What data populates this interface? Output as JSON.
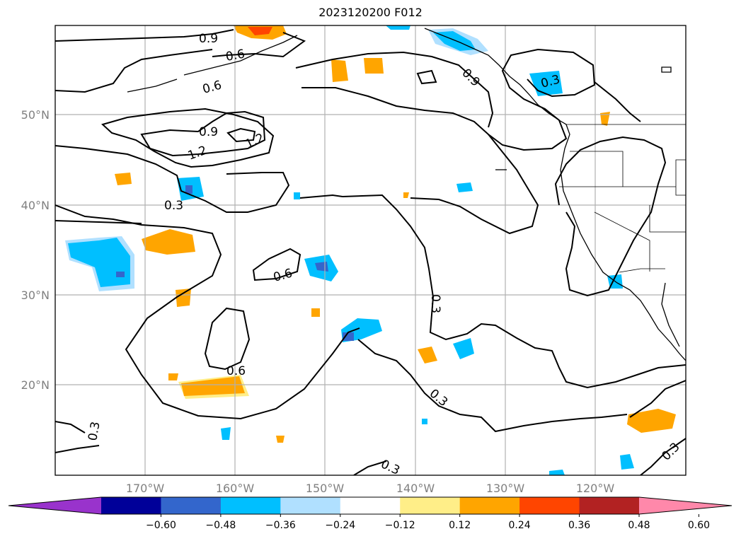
{
  "title": "2023120200 F012",
  "lat_labels": [
    "50°N",
    "40°N",
    "30°N",
    "20°N"
  ],
  "lon_labels": [
    "170°W",
    "160°W",
    "150°W",
    "140°W",
    "130°W",
    "120°W"
  ],
  "colorbar": {
    "ticks": [
      "−0.60",
      "−0.48",
      "−0.36",
      "−0.24",
      "−0.12",
      "0.12",
      "0.24",
      "0.36",
      "0.48",
      "0.60"
    ],
    "colors": [
      "#9933cc",
      "#000099",
      "#3366cc",
      "#00bfff",
      "#b0e0ff",
      "#ffffff",
      "#ffee88",
      "#ffa500",
      "#ff4500",
      "#b22222",
      "#ff88aa"
    ]
  },
  "contour_labels": [
    "0.9",
    "0.6",
    "0.6",
    "0.9",
    "1.2",
    "1.2",
    "0.3",
    "0.6",
    "0.9",
    "0.3",
    "0.3",
    "0.6",
    "0.3",
    "0.3",
    "0.3",
    "0.3"
  ]
}
